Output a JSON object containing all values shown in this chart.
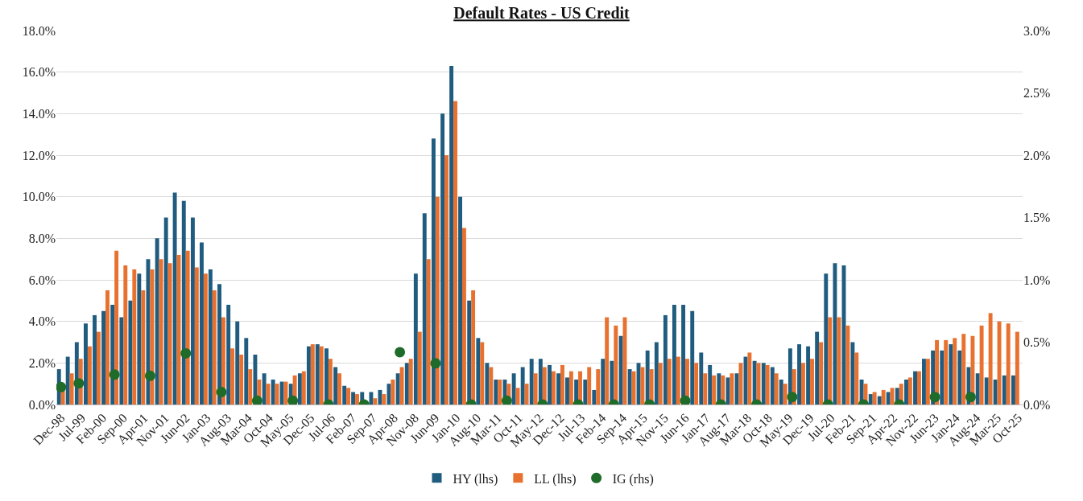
{
  "chart_data": {
    "type": "bar",
    "title": "Default Rates - US Credit",
    "x": [
      "1998-12",
      "1999-03",
      "1999-06",
      "1999-09",
      "1999-12",
      "2000-03",
      "2000-06",
      "2000-09",
      "2000-12",
      "2001-03",
      "2001-06",
      "2001-09",
      "2001-12",
      "2002-03",
      "2002-06",
      "2002-09",
      "2002-12",
      "2003-03",
      "2003-06",
      "2003-09",
      "2003-12",
      "2004-03",
      "2004-06",
      "2004-09",
      "2004-12",
      "2005-03",
      "2005-06",
      "2005-09",
      "2005-12",
      "2006-03",
      "2006-06",
      "2006-09",
      "2006-12",
      "2007-03",
      "2007-06",
      "2007-09",
      "2007-12",
      "2008-03",
      "2008-06",
      "2008-09",
      "2008-12",
      "2009-03",
      "2009-06",
      "2009-09",
      "2009-12",
      "2010-03",
      "2010-06",
      "2010-09",
      "2010-12",
      "2011-03",
      "2011-06",
      "2011-09",
      "2011-12",
      "2012-03",
      "2012-06",
      "2012-09",
      "2012-12",
      "2013-03",
      "2013-06",
      "2013-09",
      "2013-12",
      "2014-03",
      "2014-06",
      "2014-09",
      "2014-12",
      "2015-03",
      "2015-06",
      "2015-09",
      "2015-12",
      "2016-03",
      "2016-06",
      "2016-09",
      "2016-12",
      "2017-03",
      "2017-06",
      "2017-09",
      "2017-12",
      "2018-03",
      "2018-06",
      "2018-09",
      "2018-12",
      "2019-03",
      "2019-06",
      "2019-09",
      "2019-12",
      "2020-03",
      "2020-06",
      "2020-09",
      "2020-12",
      "2021-03",
      "2021-06",
      "2021-09",
      "2021-12",
      "2022-03",
      "2022-06",
      "2022-09",
      "2022-12",
      "2023-03",
      "2023-06",
      "2023-09",
      "2023-12",
      "2024-03",
      "2024-06",
      "2024-09",
      "2024-12",
      "2025-03",
      "2025-06",
      "2025-09"
    ],
    "series": [
      {
        "name": "HY (lhs)",
        "color": "#1f5c7f",
        "values": [
          1.7,
          2.3,
          3.0,
          3.9,
          4.3,
          4.5,
          4.8,
          4.2,
          5.0,
          6.3,
          7.0,
          8.0,
          9.0,
          10.2,
          9.8,
          9.0,
          7.8,
          6.5,
          5.8,
          4.8,
          4.0,
          3.2,
          2.4,
          1.5,
          1.2,
          1.1,
          1.0,
          1.5,
          2.8,
          2.9,
          2.7,
          1.8,
          0.9,
          0.6,
          0.6,
          0.6,
          0.7,
          1.0,
          1.5,
          2.0,
          6.3,
          9.2,
          12.8,
          14.0,
          16.3,
          10.0,
          5.0,
          3.2,
          2.0,
          1.2,
          1.2,
          1.5,
          1.8,
          2.2,
          2.2,
          1.9,
          1.5,
          1.3,
          1.2,
          1.2,
          0.7,
          2.2,
          2.1,
          3.3,
          1.7,
          2.0,
          2.6,
          3.0,
          4.3,
          4.8,
          4.8,
          4.5,
          2.5,
          1.9,
          1.5,
          1.3,
          1.5,
          2.3,
          2.1,
          2.0,
          1.8,
          1.2,
          2.7,
          2.9,
          2.8,
          3.5,
          6.3,
          6.8,
          6.7,
          3.0,
          1.2,
          0.5,
          0.4,
          0.6,
          0.8,
          1.2,
          1.6,
          2.2,
          2.6,
          2.6,
          2.9,
          2.6,
          1.8,
          1.5,
          1.3,
          1.2,
          1.4,
          1.4
        ]
      },
      {
        "name": "LL (lhs)",
        "color": "#e8712f",
        "values": [
          1.0,
          1.5,
          2.2,
          2.8,
          3.5,
          5.5,
          7.4,
          6.7,
          6.5,
          5.5,
          6.5,
          7.0,
          6.8,
          7.2,
          7.4,
          6.6,
          6.3,
          5.5,
          4.2,
          2.7,
          2.4,
          1.7,
          1.2,
          1.0,
          1.0,
          1.1,
          1.4,
          1.6,
          2.9,
          2.8,
          2.2,
          1.5,
          0.8,
          0.5,
          null,
          0.3,
          0.5,
          1.2,
          1.8,
          2.2,
          3.5,
          7.0,
          10.0,
          12.0,
          14.6,
          8.5,
          5.5,
          3.0,
          1.8,
          1.2,
          1.0,
          0.8,
          1.0,
          1.5,
          1.8,
          1.6,
          1.9,
          1.6,
          1.6,
          1.8,
          1.7,
          4.2,
          3.8,
          4.2,
          1.6,
          1.8,
          1.7,
          2.0,
          2.2,
          2.3,
          2.2,
          2.0,
          1.5,
          1.4,
          1.4,
          1.5,
          2.0,
          2.5,
          2.0,
          1.9,
          1.5,
          1.0,
          1.7,
          2.0,
          2.2,
          3.0,
          4.2,
          4.2,
          3.8,
          2.5,
          1.0,
          0.6,
          0.7,
          0.8,
          1.0,
          1.3,
          1.6,
          2.2,
          3.1,
          3.1,
          3.2,
          3.4,
          3.3,
          3.8,
          4.4,
          4.0,
          3.9,
          3.5
        ]
      },
      {
        "name": "IG (rhs)",
        "color": "#1e6b2a",
        "type": "scatter",
        "axis": "y2",
        "x": [
          "1998-12",
          "1999-06",
          "2000-06",
          "2001-06",
          "2002-06",
          "2003-06",
          "2004-06",
          "2005-06",
          "2006-06",
          "2007-06",
          "2008-06",
          "2009-06",
          "2010-06",
          "2011-06",
          "2012-06",
          "2013-06",
          "2014-06",
          "2015-06",
          "2016-06",
          "2017-06",
          "2018-06",
          "2019-06",
          "2020-06",
          "2021-06",
          "2022-06",
          "2023-06",
          "2024-06"
        ],
        "values": [
          0.14,
          0.17,
          0.24,
          0.23,
          0.41,
          0.1,
          0.03,
          0.03,
          0.0,
          0.0,
          0.42,
          0.33,
          0.0,
          0.03,
          0.0,
          0.0,
          0.0,
          0.0,
          0.03,
          0.0,
          0.0,
          0.06,
          0.0,
          0.0,
          0.0,
          0.06,
          0.06
        ]
      }
    ],
    "marker": "circle",
    "xlim": [
      "1998-10-15",
      "2025-11-15"
    ],
    "xticks": [
      {
        "value": "1998-12",
        "label": "Dec-98"
      },
      {
        "value": "1999-07",
        "label": "Jul-99"
      },
      {
        "value": "2000-02",
        "label": "Feb-00"
      },
      {
        "value": "2000-09",
        "label": "Sep-00"
      },
      {
        "value": "2001-04",
        "label": "Apr-01"
      },
      {
        "value": "2001-11",
        "label": "Nov-01"
      },
      {
        "value": "2002-06",
        "label": "Jun-02"
      },
      {
        "value": "2003-01",
        "label": "Jan-03"
      },
      {
        "value": "2003-08",
        "label": "Aug-03"
      },
      {
        "value": "2004-03",
        "label": "Mar-04"
      },
      {
        "value": "2004-10",
        "label": "Oct-04"
      },
      {
        "value": "2005-05",
        "label": "May-05"
      },
      {
        "value": "2005-12",
        "label": "Dec-05"
      },
      {
        "value": "2006-07",
        "label": "Jul-06"
      },
      {
        "value": "2007-02",
        "label": "Feb-07"
      },
      {
        "value": "2007-09",
        "label": "Sep-07"
      },
      {
        "value": "2008-04",
        "label": "Apr-08"
      },
      {
        "value": "2008-11",
        "label": "Nov-08"
      },
      {
        "value": "2009-06",
        "label": "Jun-09"
      },
      {
        "value": "2010-01",
        "label": "Jan-10"
      },
      {
        "value": "2010-08",
        "label": "Aug-10"
      },
      {
        "value": "2011-03",
        "label": "Mar-11"
      },
      {
        "value": "2011-10",
        "label": "Oct-11"
      },
      {
        "value": "2012-05",
        "label": "May-12"
      },
      {
        "value": "2012-12",
        "label": "Dec-12"
      },
      {
        "value": "2013-07",
        "label": "Jul-13"
      },
      {
        "value": "2014-02",
        "label": "Feb-14"
      },
      {
        "value": "2014-09",
        "label": "Sep-14"
      },
      {
        "value": "2015-04",
        "label": "Apr-15"
      },
      {
        "value": "2015-11",
        "label": "Nov-15"
      },
      {
        "value": "2016-06",
        "label": "Jun-16"
      },
      {
        "value": "2017-01",
        "label": "Jan-17"
      },
      {
        "value": "2017-08",
        "label": "Aug-17"
      },
      {
        "value": "2018-03",
        "label": "Mar-18"
      },
      {
        "value": "2018-10",
        "label": "Oct-18"
      },
      {
        "value": "2019-05",
        "label": "May-19"
      },
      {
        "value": "2019-12",
        "label": "Dec-19"
      },
      {
        "value": "2020-07",
        "label": "Jul-20"
      },
      {
        "value": "2021-02",
        "label": "Feb-21"
      },
      {
        "value": "2021-09",
        "label": "Sep-21"
      },
      {
        "value": "2022-04",
        "label": "Apr-22"
      },
      {
        "value": "2022-11",
        "label": "Nov-22"
      },
      {
        "value": "2023-06",
        "label": "Jun-23"
      },
      {
        "value": "2024-01",
        "label": "Jan-24"
      },
      {
        "value": "2024-08",
        "label": "Aug-24"
      },
      {
        "value": "2025-03",
        "label": "Mar-25"
      },
      {
        "value": "2025-10",
        "label": "Oct-25"
      }
    ],
    "ylim": [
      0,
      18
    ],
    "yticks": [
      {
        "value": 0,
        "label": "0.0%"
      },
      {
        "value": 2,
        "label": "2.0%"
      },
      {
        "value": 4,
        "label": "4.0%"
      },
      {
        "value": 6,
        "label": "6.0%"
      },
      {
        "value": 8,
        "label": "8.0%"
      },
      {
        "value": 10,
        "label": "10.0%"
      },
      {
        "value": 12,
        "label": "12.0%"
      },
      {
        "value": 14,
        "label": "14.0%"
      },
      {
        "value": 16,
        "label": "16.0%"
      },
      {
        "value": 18,
        "label": "18.0%"
      }
    ],
    "y2lim": [
      0,
      3
    ],
    "y2ticks": [
      {
        "value": 0,
        "label": "0.0%"
      },
      {
        "value": 0.5,
        "label": "0.5%"
      },
      {
        "value": 1,
        "label": "1.0%"
      },
      {
        "value": 1.5,
        "label": "1.5%"
      },
      {
        "value": 2,
        "label": "2.0%"
      },
      {
        "value": 2.5,
        "label": "2.5%"
      },
      {
        "value": 3,
        "label": "3.0%"
      }
    ],
    "grid": "y",
    "legend": "bottom"
  }
}
